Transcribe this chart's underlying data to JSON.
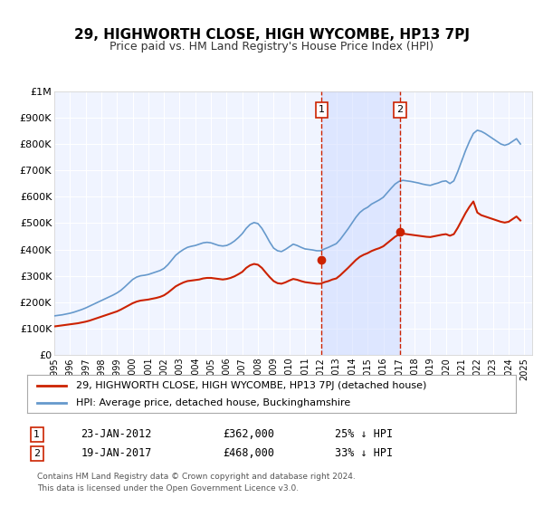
{
  "title": "29, HIGHWORTH CLOSE, HIGH WYCOMBE, HP13 7PJ",
  "subtitle": "Price paid vs. HM Land Registry's House Price Index (HPI)",
  "title_fontsize": 11,
  "subtitle_fontsize": 9,
  "background_color": "#ffffff",
  "plot_bg_color": "#f0f4ff",
  "grid_color": "#ffffff",
  "hpi_color": "#6699cc",
  "price_color": "#cc2200",
  "ylim": [
    0,
    1000000
  ],
  "yticks": [
    0,
    100000,
    200000,
    300000,
    400000,
    500000,
    600000,
    700000,
    800000,
    900000,
    1000000
  ],
  "ytick_labels": [
    "£0",
    "£100K",
    "£200K",
    "£300K",
    "£400K",
    "£500K",
    "£600K",
    "£700K",
    "£800K",
    "£900K",
    "£1M"
  ],
  "xmin": 1995.0,
  "xmax": 2025.5,
  "sale1_x": 2012.065,
  "sale1_y": 362000,
  "sale2_x": 2017.057,
  "sale2_y": 468000,
  "sale1_label": "23-JAN-2012",
  "sale2_label": "19-JAN-2017",
  "sale1_price": "£362,000",
  "sale2_price": "£468,000",
  "sale1_hpi": "25% ↓ HPI",
  "sale2_hpi": "33% ↓ HPI",
  "legend_label_price": "29, HIGHWORTH CLOSE, HIGH WYCOMBE, HP13 7PJ (detached house)",
  "legend_label_hpi": "HPI: Average price, detached house, Buckinghamshire",
  "footer1": "Contains HM Land Registry data © Crown copyright and database right 2024.",
  "footer2": "This data is licensed under the Open Government Licence v3.0.",
  "hpi_data_x": [
    1995.0,
    1995.25,
    1995.5,
    1995.75,
    1996.0,
    1996.25,
    1996.5,
    1996.75,
    1997.0,
    1997.25,
    1997.5,
    1997.75,
    1998.0,
    1998.25,
    1998.5,
    1998.75,
    1999.0,
    1999.25,
    1999.5,
    1999.75,
    2000.0,
    2000.25,
    2000.5,
    2000.75,
    2001.0,
    2001.25,
    2001.5,
    2001.75,
    2002.0,
    2002.25,
    2002.5,
    2002.75,
    2003.0,
    2003.25,
    2003.5,
    2003.75,
    2004.0,
    2004.25,
    2004.5,
    2004.75,
    2005.0,
    2005.25,
    2005.5,
    2005.75,
    2006.0,
    2006.25,
    2006.5,
    2006.75,
    2007.0,
    2007.25,
    2007.5,
    2007.75,
    2008.0,
    2008.25,
    2008.5,
    2008.75,
    2009.0,
    2009.25,
    2009.5,
    2009.75,
    2010.0,
    2010.25,
    2010.5,
    2010.75,
    2011.0,
    2011.25,
    2011.5,
    2011.75,
    2012.0,
    2012.25,
    2012.5,
    2012.75,
    2013.0,
    2013.25,
    2013.5,
    2013.75,
    2014.0,
    2014.25,
    2014.5,
    2014.75,
    2015.0,
    2015.25,
    2015.5,
    2015.75,
    2016.0,
    2016.25,
    2016.5,
    2016.75,
    2017.0,
    2017.25,
    2017.5,
    2017.75,
    2018.0,
    2018.25,
    2018.5,
    2018.75,
    2019.0,
    2019.25,
    2019.5,
    2019.75,
    2020.0,
    2020.25,
    2020.5,
    2020.75,
    2021.0,
    2021.25,
    2021.5,
    2021.75,
    2022.0,
    2022.25,
    2022.5,
    2022.75,
    2023.0,
    2023.25,
    2023.5,
    2023.75,
    2024.0,
    2024.25,
    2024.5,
    2024.75
  ],
  "hpi_data_y": [
    148000,
    150000,
    152000,
    155000,
    158000,
    162000,
    167000,
    172000,
    178000,
    185000,
    192000,
    199000,
    206000,
    213000,
    220000,
    227000,
    235000,
    245000,
    258000,
    272000,
    286000,
    295000,
    300000,
    302000,
    305000,
    310000,
    315000,
    320000,
    328000,
    342000,
    360000,
    378000,
    390000,
    400000,
    408000,
    412000,
    415000,
    420000,
    425000,
    427000,
    425000,
    420000,
    415000,
    413000,
    415000,
    422000,
    432000,
    445000,
    460000,
    480000,
    495000,
    502000,
    498000,
    480000,
    455000,
    428000,
    405000,
    395000,
    392000,
    400000,
    410000,
    420000,
    415000,
    408000,
    402000,
    400000,
    398000,
    395000,
    395000,
    402000,
    408000,
    415000,
    422000,
    438000,
    458000,
    478000,
    500000,
    522000,
    540000,
    552000,
    560000,
    572000,
    580000,
    588000,
    598000,
    615000,
    632000,
    648000,
    658000,
    662000,
    660000,
    658000,
    655000,
    652000,
    648000,
    645000,
    643000,
    648000,
    652000,
    658000,
    660000,
    650000,
    660000,
    695000,
    735000,
    775000,
    810000,
    840000,
    852000,
    848000,
    840000,
    830000,
    820000,
    810000,
    800000,
    795000,
    800000,
    810000,
    820000,
    800000
  ],
  "price_data_x": [
    1995.0,
    1995.25,
    1995.5,
    1995.75,
    1996.0,
    1996.25,
    1996.5,
    1996.75,
    1997.0,
    1997.25,
    1997.5,
    1997.75,
    1998.0,
    1998.25,
    1998.5,
    1998.75,
    1999.0,
    1999.25,
    1999.5,
    1999.75,
    2000.0,
    2000.25,
    2000.5,
    2000.75,
    2001.0,
    2001.25,
    2001.5,
    2001.75,
    2002.0,
    2002.25,
    2002.5,
    2002.75,
    2003.0,
    2003.25,
    2003.5,
    2003.75,
    2004.0,
    2004.25,
    2004.5,
    2004.75,
    2005.0,
    2005.25,
    2005.5,
    2005.75,
    2006.0,
    2006.25,
    2006.5,
    2006.75,
    2007.0,
    2007.25,
    2007.5,
    2007.75,
    2008.0,
    2008.25,
    2008.5,
    2008.75,
    2009.0,
    2009.25,
    2009.5,
    2009.75,
    2010.0,
    2010.25,
    2010.5,
    2010.75,
    2011.0,
    2011.25,
    2011.5,
    2011.75,
    2012.0,
    2012.25,
    2012.5,
    2012.75,
    2013.0,
    2013.25,
    2013.5,
    2013.75,
    2014.0,
    2014.25,
    2014.5,
    2014.75,
    2015.0,
    2015.25,
    2015.5,
    2015.75,
    2016.0,
    2016.25,
    2016.5,
    2016.75,
    2017.0,
    2017.25,
    2017.5,
    2017.75,
    2018.0,
    2018.25,
    2018.5,
    2018.75,
    2019.0,
    2019.25,
    2019.5,
    2019.75,
    2020.0,
    2020.25,
    2020.5,
    2020.75,
    2021.0,
    2021.25,
    2021.5,
    2021.75,
    2022.0,
    2022.25,
    2022.5,
    2022.75,
    2023.0,
    2023.25,
    2023.5,
    2023.75,
    2024.0,
    2024.25,
    2024.5,
    2024.75
  ],
  "price_data_y": [
    108000,
    110000,
    112000,
    114000,
    116000,
    118000,
    120000,
    123000,
    126000,
    130000,
    135000,
    140000,
    145000,
    150000,
    155000,
    160000,
    165000,
    172000,
    180000,
    188000,
    196000,
    202000,
    206000,
    208000,
    210000,
    213000,
    216000,
    220000,
    226000,
    236000,
    248000,
    260000,
    268000,
    275000,
    280000,
    282000,
    284000,
    286000,
    290000,
    292000,
    292000,
    290000,
    288000,
    286000,
    288000,
    292000,
    298000,
    306000,
    315000,
    330000,
    340000,
    345000,
    342000,
    330000,
    312000,
    295000,
    280000,
    272000,
    270000,
    275000,
    282000,
    288000,
    285000,
    280000,
    276000,
    274000,
    272000,
    270000,
    270000,
    276000,
    280000,
    286000,
    290000,
    302000,
    316000,
    330000,
    345000,
    360000,
    372000,
    380000,
    386000,
    394000,
    400000,
    405000,
    412000,
    424000,
    436000,
    448000,
    457000,
    460000,
    458000,
    456000,
    454000,
    452000,
    450000,
    448000,
    447000,
    450000,
    453000,
    456000,
    458000,
    452000,
    458000,
    482000,
    510000,
    538000,
    562000,
    582000,
    540000,
    530000,
    525000,
    520000,
    515000,
    510000,
    505000,
    502000,
    505000,
    515000,
    525000,
    510000
  ]
}
